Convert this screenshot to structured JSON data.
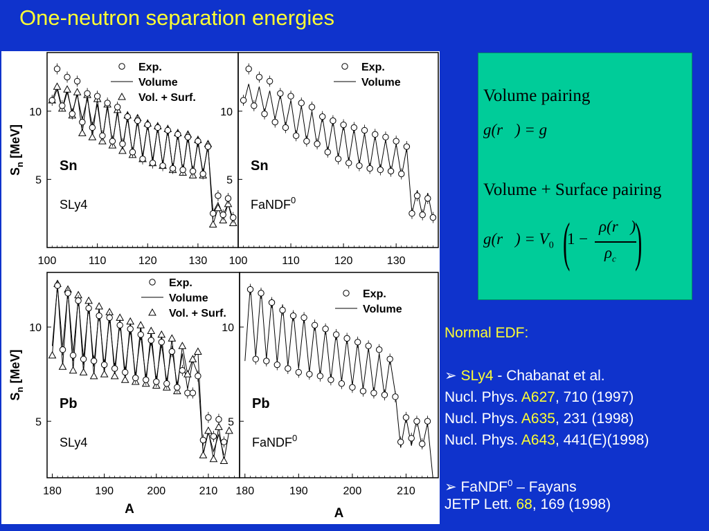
{
  "title": "One-neutron separation energies",
  "chart_data": [
    {
      "type": "line",
      "panel": "top-left",
      "nucleus_label": "Sn",
      "model_label": "SLy4",
      "ylabel": "S_n [MeV]",
      "xlim": [
        100,
        138
      ],
      "ylim": [
        0,
        14.3
      ],
      "xticks": [
        100,
        110,
        120,
        130
      ],
      "yticks": [
        5,
        10
      ],
      "legend": [
        "Exp.",
        "Volume",
        "Vol. + Surf."
      ],
      "legend_position": "top",
      "exp": {
        "x": [
          101,
          102,
          103,
          104,
          105,
          106,
          107,
          108,
          109,
          110,
          111,
          112,
          113,
          114,
          115,
          116,
          117,
          118,
          119,
          120,
          121,
          122,
          123,
          124,
          125,
          126,
          127,
          128,
          129,
          130,
          131,
          132,
          133,
          134,
          135,
          136,
          137
        ],
        "y": [
          10.8,
          13.1,
          10.4,
          12.5,
          9.8,
          12.2,
          9.2,
          11.3,
          8.8,
          11.1,
          8.2,
          10.6,
          7.8,
          10.3,
          7.6,
          9.6,
          7.0,
          9.3,
          6.5,
          9.0,
          6.2,
          8.8,
          6.0,
          8.6,
          5.8,
          8.3,
          5.7,
          8.1,
          5.6,
          7.8,
          5.4,
          7.4,
          2.5,
          3.8,
          2.4,
          3.6,
          2.2
        ]
      },
      "volume": {
        "x": [
          101,
          102,
          103,
          104,
          105,
          106,
          107,
          108,
          109,
          110,
          111,
          112,
          113,
          114,
          115,
          116,
          117,
          118,
          119,
          120,
          121,
          122,
          123,
          124,
          125,
          126,
          127,
          128,
          129,
          130,
          131,
          132,
          133,
          134,
          135,
          136,
          137
        ],
        "y": [
          10.6,
          11.6,
          10.1,
          11.4,
          9.9,
          11.2,
          9.4,
          10.9,
          8.9,
          10.5,
          8.0,
          10.3,
          7.7,
          9.9,
          7.4,
          9.5,
          6.9,
          9.3,
          6.7,
          9.0,
          6.4,
          8.8,
          6.1,
          8.6,
          5.8,
          8.3,
          5.6,
          8.1,
          5.5,
          7.7,
          5.5,
          7.4,
          2.6,
          3.3,
          2.4,
          3.2,
          2.1
        ]
      },
      "vol_surf": {
        "x": [
          101,
          102,
          103,
          104,
          105,
          106,
          107,
          108,
          109,
          110,
          111,
          112,
          113,
          114,
          115,
          116,
          117,
          118,
          119,
          120,
          121,
          122,
          123,
          124,
          125,
          126,
          127,
          128,
          129,
          130,
          131,
          132,
          133,
          134,
          135,
          136,
          137
        ],
        "y": [
          10.8,
          11.8,
          10.2,
          11.6,
          9.7,
          11.4,
          8.4,
          11.2,
          8.1,
          10.9,
          7.8,
          10.5,
          7.5,
          10.1,
          7.1,
          9.7,
          6.8,
          9.5,
          6.5,
          9.1,
          6.2,
          8.9,
          6.0,
          8.7,
          5.7,
          8.4,
          5.5,
          8.3,
          5.3,
          7.9,
          5.3,
          7.6,
          1.7,
          2.9,
          2.0,
          3.2,
          1.8
        ]
      }
    },
    {
      "type": "line",
      "panel": "top-right",
      "nucleus_label": "Sn",
      "model_label": "FaNDF",
      "model_sup": "0",
      "xlim": [
        100,
        138
      ],
      "ylim": [
        0,
        14.3
      ],
      "xticks": [
        100,
        110,
        120,
        130
      ],
      "yticks": [
        5,
        10
      ],
      "legend": [
        "Exp.",
        "Volume"
      ],
      "legend_position": "top-right",
      "exp": {
        "x": [
          101,
          102,
          103,
          104,
          105,
          106,
          107,
          108,
          109,
          110,
          111,
          112,
          113,
          114,
          115,
          116,
          117,
          118,
          119,
          120,
          121,
          122,
          123,
          124,
          125,
          126,
          127,
          128,
          129,
          130,
          131,
          132,
          133,
          134,
          135,
          136,
          137
        ],
        "y": [
          10.8,
          13.1,
          10.4,
          12.5,
          9.8,
          12.2,
          9.2,
          11.3,
          8.8,
          11.1,
          8.2,
          10.6,
          7.8,
          10.3,
          7.6,
          9.6,
          7.0,
          9.3,
          6.5,
          9.0,
          6.2,
          8.8,
          6.0,
          8.6,
          5.8,
          8.3,
          5.7,
          8.1,
          5.6,
          7.8,
          5.4,
          7.4,
          2.5,
          3.8,
          2.4,
          3.6,
          2.2
        ]
      },
      "volume": {
        "x": [
          101,
          102,
          103,
          104,
          105,
          106,
          107,
          108,
          109,
          110,
          111,
          112,
          113,
          114,
          115,
          116,
          117,
          118,
          119,
          120,
          121,
          122,
          123,
          124,
          125,
          126,
          127,
          128,
          129,
          130,
          131,
          132,
          133,
          134,
          135,
          136,
          137
        ],
        "y": [
          10.5,
          12.0,
          10.2,
          11.8,
          9.9,
          11.5,
          9.4,
          11.2,
          8.9,
          10.8,
          8.2,
          10.4,
          7.8,
          10.0,
          7.4,
          9.6,
          7.0,
          9.3,
          6.6,
          9.0,
          6.3,
          8.7,
          6.1,
          8.4,
          5.8,
          8.2,
          5.7,
          7.9,
          5.5,
          7.6,
          5.2,
          7.3,
          2.5,
          4.2,
          2.3,
          4.0,
          2.0
        ]
      }
    },
    {
      "type": "line",
      "panel": "bottom-left",
      "nucleus_label": "Pb",
      "model_label": "SLy4",
      "ylabel": "S_n [MeV]",
      "xlabel": "A",
      "xlim": [
        179,
        216
      ],
      "ylim": [
        2.0,
        12.9
      ],
      "xticks": [
        180,
        190,
        200,
        210
      ],
      "yticks": [
        5,
        10
      ],
      "legend": [
        "Exp.",
        "Volume",
        "Vol. + Surf."
      ],
      "legend_position": "top-right",
      "exp": {
        "x": [
          181,
          182,
          183,
          184,
          185,
          186,
          187,
          188,
          189,
          190,
          191,
          192,
          193,
          194,
          195,
          196,
          197,
          198,
          199,
          200,
          201,
          202,
          203,
          204,
          205,
          206,
          207,
          208,
          209,
          210,
          211,
          212,
          213
        ],
        "y": [
          12.2,
          8.8,
          11.8,
          8.5,
          11.4,
          8.3,
          11.0,
          8.2,
          10.6,
          8.0,
          10.5,
          7.8,
          10.1,
          7.6,
          9.9,
          7.3,
          9.6,
          7.2,
          9.3,
          7.1,
          9.2,
          7.0,
          8.7,
          6.8,
          7.7,
          6.5,
          6.5,
          7.4,
          4.0,
          5.2,
          4.2,
          5.1,
          3.9
        ]
      },
      "volume": {
        "x": [
          180,
          181,
          182,
          183,
          184,
          185,
          186,
          187,
          188,
          189,
          190,
          191,
          192,
          193,
          194,
          195,
          196,
          197,
          198,
          199,
          200,
          201,
          202,
          203,
          204,
          205,
          206,
          207,
          208,
          209,
          210,
          211,
          212,
          213
        ],
        "y": [
          9.0,
          12.2,
          8.9,
          11.9,
          8.6,
          11.5,
          8.3,
          11.1,
          8.0,
          10.8,
          7.9,
          10.5,
          7.8,
          10.2,
          7.6,
          9.9,
          7.4,
          9.6,
          7.3,
          9.3,
          7.2,
          9.1,
          7.1,
          8.9,
          6.9,
          8.6,
          6.7,
          8.2,
          7.5,
          3.3,
          4.4,
          3.4,
          4.3,
          3.2
        ]
      },
      "vol_surf": {
        "x": [
          180,
          181,
          182,
          183,
          184,
          185,
          186,
          187,
          188,
          189,
          190,
          191,
          192,
          193,
          194,
          195,
          196,
          197,
          198,
          199,
          200,
          201,
          202,
          203,
          204,
          205,
          206,
          207,
          208,
          209,
          210,
          211,
          212,
          213,
          214
        ],
        "y": [
          8.5,
          12.3,
          7.9,
          12.0,
          7.7,
          11.7,
          7.6,
          11.4,
          7.4,
          11.1,
          7.5,
          10.8,
          7.4,
          10.5,
          7.2,
          10.3,
          7.1,
          10.1,
          7.0,
          9.8,
          6.9,
          9.6,
          6.8,
          9.4,
          6.6,
          9.0,
          7.5,
          8.3,
          8.7,
          3.2,
          4.5,
          3.0,
          4.7,
          2.9,
          4.5
        ]
      }
    },
    {
      "type": "line",
      "panel": "bottom-right",
      "nucleus_label": "Pb",
      "model_label": "FaNDF",
      "model_sup": "0",
      "xlabel": "A",
      "xlim": [
        179,
        216
      ],
      "ylim": [
        2.0,
        12.9
      ],
      "xticks": [
        180,
        190,
        200,
        210
      ],
      "yticks": [
        5,
        10
      ],
      "legend": [
        "Exp.",
        "Volume"
      ],
      "legend_position": "top-right",
      "exp": {
        "x": [
          181,
          182,
          183,
          184,
          185,
          186,
          187,
          188,
          189,
          190,
          191,
          192,
          193,
          194,
          195,
          196,
          197,
          198,
          199,
          200,
          201,
          202,
          203,
          204,
          205,
          206,
          207,
          208,
          209,
          210,
          211,
          212,
          213,
          214
        ],
        "y": [
          12.0,
          8.3,
          11.8,
          8.2,
          11.3,
          8.0,
          10.9,
          7.8,
          10.6,
          7.6,
          10.5,
          7.5,
          10.1,
          7.4,
          9.9,
          7.2,
          9.6,
          7.0,
          9.4,
          6.8,
          9.2,
          6.6,
          9.0,
          6.5,
          8.8,
          6.4,
          8.3,
          6.3,
          3.9,
          5.2,
          4.1,
          5.0,
          3.8,
          5.0
        ]
      },
      "volume": {
        "x": [
          180,
          181,
          182,
          183,
          184,
          185,
          186,
          187,
          188,
          189,
          190,
          191,
          192,
          193,
          194,
          195,
          196,
          197,
          198,
          199,
          200,
          201,
          202,
          203,
          204,
          205,
          206,
          207,
          208,
          209,
          210,
          211,
          212,
          213,
          214,
          215
        ],
        "y": [
          8.2,
          12.2,
          8.4,
          12.0,
          8.3,
          11.5,
          8.1,
          11.2,
          7.9,
          10.8,
          7.8,
          10.5,
          7.6,
          10.2,
          7.4,
          9.9,
          7.2,
          9.7,
          7.1,
          9.4,
          6.9,
          9.2,
          6.7,
          8.9,
          6.5,
          8.6,
          6.3,
          8.3,
          6.5,
          3.6,
          5.2,
          3.7,
          5.1,
          3.6,
          4.9,
          2.0
        ]
      }
    }
  ],
  "formula_box": {
    "volume_pairing_label": "Volume pairing",
    "volume_pairing_formula": "g(r⃗) = g",
    "vs_pairing_label": "Volume + Surface pairing",
    "vs_formula_lhs": "g(r⃗) = V",
    "vs_formula_sub": "0",
    "vs_formula_one_minus": "1 −",
    "vs_formula_num": "ρ(r⃗)",
    "vs_formula_den": "ρ",
    "vs_formula_den_sub": "c"
  },
  "references": {
    "heading": "Normal EDF:",
    "bullet": "➢",
    "sly4_name": "SLy4",
    "sly4_authors": " - Chabanat et al.",
    "journal": "Nucl. Phys. ",
    "refs": [
      {
        "vol": "A627",
        "rest": ", 710 (1997)"
      },
      {
        "vol": "A635",
        "rest": ", 231 (1998)"
      },
      {
        "vol": "A643",
        "rest": ", 441(E)(1998)"
      }
    ],
    "fandf_name": "FaNDF",
    "fandf_sup": "0",
    "fandf_authors": " – Fayans",
    "jetp": "JETP Lett. ",
    "jetp_vol": "68",
    "jetp_rest": ", 169 (1998)"
  },
  "colors": {
    "background": "#0f33cc",
    "title": "#ffff33",
    "formula_bg": "#00cc99"
  }
}
